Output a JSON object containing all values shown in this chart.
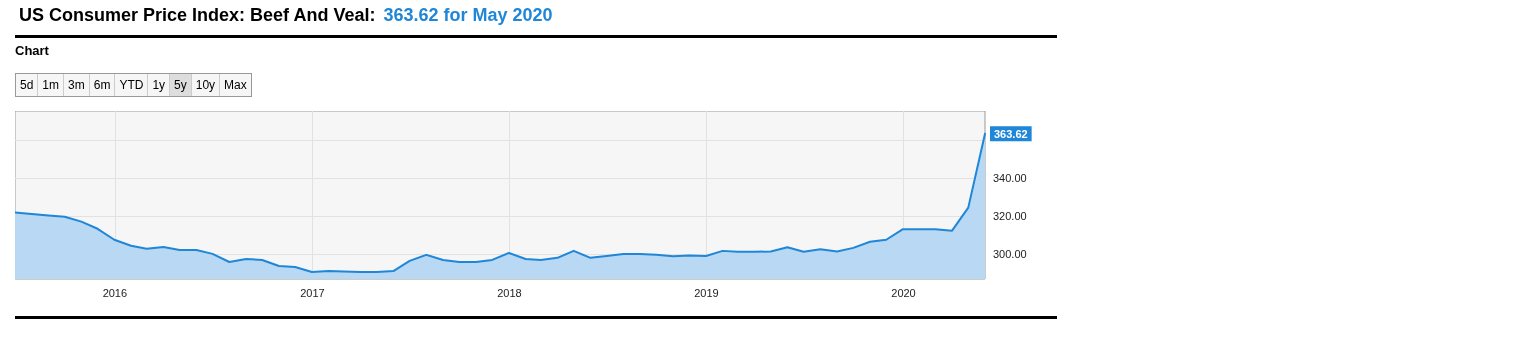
{
  "chart_data": {
    "type": "area",
    "title": "US Consumer Price Index: Beef And Veal:",
    "subtitle": "363.62 for May 2020",
    "annotations": [
      "Chart",
      "5d",
      "1m",
      "3m",
      "6m",
      "YTD",
      "1y",
      "5y",
      "10y",
      "Max"
    ],
    "x": [
      "2015-06-30",
      "2015-07-31",
      "2015-08-31",
      "2015-09-30",
      "2015-10-31",
      "2015-11-30",
      "2015-12-31",
      "2016-01-31",
      "2016-02-29",
      "2016-03-31",
      "2016-04-30",
      "2016-05-31",
      "2016-06-30",
      "2016-07-31",
      "2016-08-31",
      "2016-09-30",
      "2016-10-31",
      "2016-11-30",
      "2016-12-31",
      "2017-01-31",
      "2017-02-28",
      "2017-03-31",
      "2017-04-30",
      "2017-05-31",
      "2017-06-30",
      "2017-07-31",
      "2017-08-31",
      "2017-09-30",
      "2017-10-31",
      "2017-11-30",
      "2017-12-31",
      "2018-01-31",
      "2018-02-28",
      "2018-03-31",
      "2018-04-30",
      "2018-05-31",
      "2018-06-30",
      "2018-07-31",
      "2018-08-31",
      "2018-09-30",
      "2018-10-31",
      "2018-11-30",
      "2018-12-31",
      "2019-01-31",
      "2019-02-28",
      "2019-03-31",
      "2019-04-30",
      "2019-05-31",
      "2019-06-30",
      "2019-07-31",
      "2019-08-31",
      "2019-09-30",
      "2019-10-31",
      "2019-11-30",
      "2019-12-31",
      "2020-01-31",
      "2020-02-29",
      "2020-03-31",
      "2020-04-30",
      "2020-05-31"
    ],
    "series": [
      {
        "color": "#1f86d8",
        "values": [
          321.9,
          321.1,
          320.3,
          319.7,
          317.1,
          313.3,
          307.5,
          304.3,
          302.7,
          303.7,
          302.1,
          302.1,
          300.0,
          295.7,
          297.3,
          296.8,
          293.6,
          293.1,
          290.4,
          290.9,
          290.7,
          290.4,
          290.4,
          290.9,
          296.3,
          299.5,
          296.8,
          295.7,
          295.7,
          296.8,
          300.5,
          297.3,
          296.8,
          297.9,
          301.6,
          297.9,
          298.9,
          300.0,
          300.0,
          299.5,
          298.7,
          299.2,
          298.9,
          301.6,
          301.1,
          301.1,
          301.3,
          303.5,
          301.1,
          302.4,
          301.3,
          303.2,
          306.4,
          307.5,
          313.1,
          313.1,
          313.0,
          312.3,
          324.5,
          363.62
        ],
        "value_labels": [
          null,
          null,
          null,
          null,
          null,
          null,
          null,
          null,
          null,
          null,
          null,
          null,
          null,
          null,
          null,
          null,
          null,
          null,
          null,
          null,
          null,
          null,
          null,
          null,
          null,
          null,
          null,
          null,
          null,
          null,
          null,
          null,
          null,
          null,
          null,
          null,
          null,
          null,
          null,
          null,
          null,
          null,
          null,
          null,
          null,
          null,
          null,
          null,
          null,
          null,
          null,
          null,
          null,
          null,
          null,
          null,
          null,
          null,
          null,
          "363.62"
        ]
      }
    ],
    "xlim": [
      "2015-06-30",
      "2020-05-31"
    ],
    "xticks": [
      {
        "value": "2016-01-01",
        "label": "2016"
      },
      {
        "value": "2017-01-01",
        "label": "2017"
      },
      {
        "value": "2018-01-01",
        "label": "2018"
      },
      {
        "value": "2019-01-01",
        "label": "2019"
      },
      {
        "value": "2020-01-01",
        "label": "2020"
      }
    ],
    "ylim": [
      286.7,
      375.7
    ],
    "yticks": [
      {
        "value": 300,
        "label": "300.00"
      },
      {
        "value": 320,
        "label": "320.00"
      },
      {
        "value": 340,
        "label": "340.00"
      },
      {
        "value": 360,
        "label": null
      }
    ],
    "grid": true,
    "marker": "none",
    "line_style": "solid"
  }
}
